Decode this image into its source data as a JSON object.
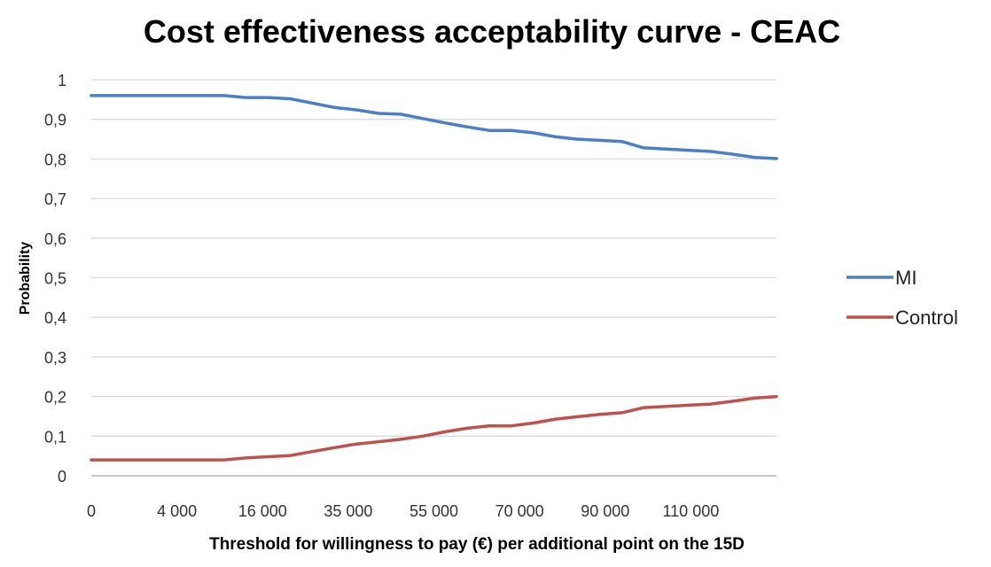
{
  "chart_data": {
    "type": "line",
    "title": "Cost effectiveness acceptability curve - CEAC",
    "xlabel": "Threshold for willingness to pay (€) per additional point on the 15D",
    "ylabel": "Probability",
    "x_tick_labels": [
      "0",
      "4 000",
      "16 000",
      "35 000",
      "55 000",
      "70 000",
      "90 000",
      "110 000"
    ],
    "y_ticks": [
      "0",
      "0,1",
      "0,2",
      "0,3",
      "0,4",
      "0,5",
      "0,6",
      "0,7",
      "0,8",
      "0,9",
      "1"
    ],
    "ylim": [
      0,
      1
    ],
    "grid": "horizontal",
    "legend_position": "right",
    "series": [
      {
        "name": "MI",
        "color": "#4a7ec7",
        "values": [
          0.96,
          0.96,
          0.96,
          0.96,
          0.96,
          0.96,
          0.96,
          0.955,
          0.955,
          0.952,
          0.941,
          0.93,
          0.924,
          0.915,
          0.913,
          0.902,
          0.891,
          0.881,
          0.872,
          0.872,
          0.866,
          0.856,
          0.85,
          0.847,
          0.844,
          0.828,
          0.825,
          0.822,
          0.819,
          0.812,
          0.804,
          0.801
        ]
      },
      {
        "name": "Control",
        "color": "#c0504d",
        "values": [
          0.04,
          0.04,
          0.04,
          0.04,
          0.04,
          0.04,
          0.04,
          0.045,
          0.048,
          0.051,
          0.061,
          0.071,
          0.08,
          0.086,
          0.092,
          0.1,
          0.111,
          0.12,
          0.126,
          0.126,
          0.133,
          0.143,
          0.149,
          0.155,
          0.159,
          0.172,
          0.175,
          0.178,
          0.181,
          0.188,
          0.196,
          0.2
        ]
      }
    ]
  }
}
